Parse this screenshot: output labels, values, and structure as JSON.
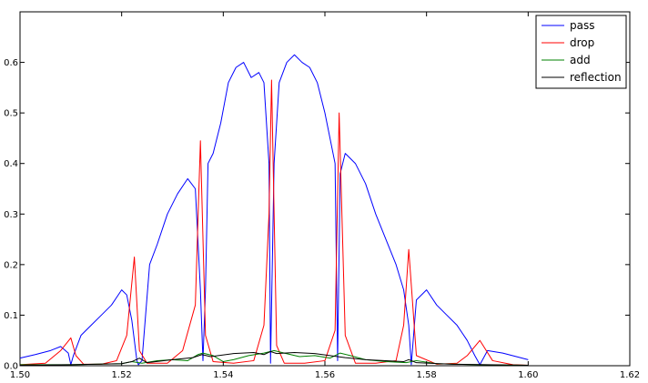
{
  "chart_data": {
    "type": "line",
    "title": "",
    "xlabel": "",
    "ylabel": "",
    "xlim": [
      1.5,
      1.62
    ],
    "ylim": [
      0.0,
      0.7
    ],
    "x_ticks": [
      "1.50",
      "1.52",
      "1.54",
      "1.56",
      "1.58",
      "1.60",
      "1.62"
    ],
    "y_ticks": [
      "0.0",
      "0.1",
      "0.2",
      "0.3",
      "0.4",
      "0.5",
      "0.6"
    ],
    "grid": false,
    "legend_position": "top-right",
    "series": [
      {
        "name": "pass",
        "color": "#0000ff",
        "x": [
          1.5,
          1.503,
          1.506,
          1.508,
          1.5095,
          1.51,
          1.5105,
          1.512,
          1.514,
          1.516,
          1.518,
          1.52,
          1.521,
          1.522,
          1.523,
          1.5233,
          1.524,
          1.5255,
          1.527,
          1.529,
          1.531,
          1.533,
          1.5345,
          1.5355,
          1.536,
          1.5365,
          1.537,
          1.538,
          1.5395,
          1.541,
          1.5425,
          1.544,
          1.5455,
          1.547,
          1.548,
          1.549,
          1.5493,
          1.55,
          1.551,
          1.5525,
          1.554,
          1.5555,
          1.557,
          1.5585,
          1.56,
          1.562,
          1.5625,
          1.563,
          1.564,
          1.566,
          1.568,
          1.57,
          1.572,
          1.574,
          1.5755,
          1.5765,
          1.577,
          1.578,
          1.58,
          1.582,
          1.584,
          1.586,
          1.588,
          1.5895,
          1.5905,
          1.592,
          1.595,
          1.6
        ],
        "y": [
          0.015,
          0.022,
          0.03,
          0.038,
          0.025,
          0.002,
          0.02,
          0.06,
          0.08,
          0.1,
          0.12,
          0.15,
          0.14,
          0.09,
          0.01,
          0.002,
          0.01,
          0.2,
          0.24,
          0.3,
          0.34,
          0.37,
          0.35,
          0.15,
          0.01,
          0.15,
          0.4,
          0.42,
          0.48,
          0.56,
          0.59,
          0.6,
          0.57,
          0.58,
          0.56,
          0.4,
          0.005,
          0.4,
          0.56,
          0.6,
          0.615,
          0.6,
          0.59,
          0.56,
          0.5,
          0.4,
          0.01,
          0.38,
          0.42,
          0.4,
          0.36,
          0.3,
          0.25,
          0.2,
          0.15,
          0.08,
          0.002,
          0.13,
          0.15,
          0.12,
          0.1,
          0.08,
          0.05,
          0.02,
          0.002,
          0.03,
          0.025,
          0.012
        ]
      },
      {
        "name": "drop",
        "color": "#ff0000",
        "x": [
          1.5,
          1.505,
          1.508,
          1.51,
          1.511,
          1.5125,
          1.516,
          1.519,
          1.521,
          1.5225,
          1.5235,
          1.525,
          1.529,
          1.532,
          1.5345,
          1.5355,
          1.5365,
          1.538,
          1.542,
          1.546,
          1.548,
          1.549,
          1.5495,
          1.5505,
          1.552,
          1.556,
          1.56,
          1.562,
          1.5628,
          1.564,
          1.566,
          1.57,
          1.574,
          1.5755,
          1.5765,
          1.578,
          1.582,
          1.586,
          1.588,
          1.5905,
          1.593,
          1.597,
          1.6
        ],
        "y": [
          0.002,
          0.005,
          0.03,
          0.055,
          0.02,
          0.003,
          0.003,
          0.01,
          0.06,
          0.215,
          0.03,
          0.005,
          0.005,
          0.03,
          0.12,
          0.445,
          0.06,
          0.008,
          0.005,
          0.01,
          0.08,
          0.3,
          0.565,
          0.04,
          0.005,
          0.005,
          0.01,
          0.07,
          0.5,
          0.06,
          0.005,
          0.005,
          0.01,
          0.08,
          0.23,
          0.02,
          0.003,
          0.005,
          0.02,
          0.05,
          0.01,
          0.002,
          0.001
        ]
      },
      {
        "name": "add",
        "color": "#008000",
        "x": [
          1.5,
          1.51,
          1.52,
          1.522,
          1.524,
          1.527,
          1.53,
          1.533,
          1.535,
          1.536,
          1.538,
          1.54,
          1.542,
          1.545,
          1.548,
          1.55,
          1.552,
          1.555,
          1.558,
          1.561,
          1.563,
          1.565,
          1.568,
          1.572,
          1.576,
          1.578,
          1.582,
          1.59,
          1.6
        ],
        "y": [
          0.002,
          0.002,
          0.004,
          0.008,
          0.005,
          0.01,
          0.012,
          0.01,
          0.022,
          0.025,
          0.02,
          0.008,
          0.012,
          0.02,
          0.025,
          0.03,
          0.025,
          0.018,
          0.02,
          0.015,
          0.025,
          0.02,
          0.012,
          0.008,
          0.006,
          0.01,
          0.004,
          0.002,
          0.001
        ]
      },
      {
        "name": "reflection",
        "color": "#000000",
        "x": [
          1.5,
          1.51,
          1.52,
          1.522,
          1.5235,
          1.525,
          1.53,
          1.534,
          1.5358,
          1.5375,
          1.542,
          1.546,
          1.548,
          1.5493,
          1.5505,
          1.554,
          1.558,
          1.561,
          1.5625,
          1.564,
          1.568,
          1.572,
          1.5755,
          1.5765,
          1.578,
          1.585,
          1.6
        ],
        "y": [
          0.001,
          0.002,
          0.004,
          0.008,
          0.015,
          0.006,
          0.012,
          0.016,
          0.022,
          0.018,
          0.024,
          0.026,
          0.022,
          0.028,
          0.024,
          0.026,
          0.024,
          0.02,
          0.018,
          0.016,
          0.012,
          0.01,
          0.008,
          0.012,
          0.006,
          0.003,
          0.001
        ]
      }
    ]
  }
}
